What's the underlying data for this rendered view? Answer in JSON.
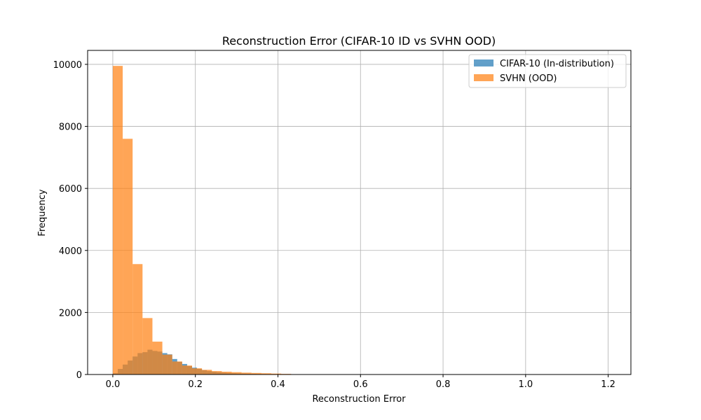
{
  "chart_data": {
    "type": "bar",
    "title": "Reconstruction Error (CIFAR-10 ID vs SVHN OOD)",
    "xlabel": "Reconstruction Error",
    "ylabel": "Frequency",
    "xlim": [
      -0.061,
      1.255
    ],
    "ylim": [
      0,
      10450
    ],
    "xticks": [
      0.0,
      0.2,
      0.4,
      0.6,
      0.8,
      1.0,
      1.2
    ],
    "xtick_labels": [
      "0.0",
      "0.2",
      "0.4",
      "0.6",
      "0.8",
      "1.0",
      "1.2"
    ],
    "yticks": [
      0,
      2000,
      4000,
      6000,
      8000,
      10000
    ],
    "ytick_labels": [
      "0",
      "2000",
      "4000",
      "6000",
      "8000",
      "10000"
    ],
    "grid": true,
    "legend_position": "top-right",
    "series": [
      {
        "name": "CIFAR-10 (In-distribution)",
        "color": "#1f77b4",
        "alpha": 0.7,
        "bin_edges": [
          0.0,
          0.012,
          0.024,
          0.036,
          0.048,
          0.06,
          0.072,
          0.084,
          0.096,
          0.108,
          0.12,
          0.132,
          0.144,
          0.156,
          0.168,
          0.18,
          0.192,
          0.204,
          0.216,
          0.228,
          0.24,
          0.252,
          0.264,
          0.276,
          0.288,
          0.3,
          0.312,
          0.324,
          0.336,
          0.348,
          0.36,
          0.372,
          0.384,
          0.396,
          0.408,
          0.42,
          0.432,
          0.444,
          0.456
        ],
        "counts": [
          40,
          180,
          320,
          450,
          580,
          690,
          720,
          800,
          760,
          740,
          690,
          650,
          500,
          410,
          340,
          270,
          220,
          180,
          140,
          110,
          90,
          75,
          60,
          50,
          42,
          36,
          30,
          26,
          22,
          18,
          15,
          12,
          10,
          8,
          6,
          5,
          4,
          3
        ]
      },
      {
        "name": "SVHN (OOD)",
        "color": "#ff7f0e",
        "alpha": 0.7,
        "bin_edges": [
          0.0,
          0.024,
          0.048,
          0.072,
          0.096,
          0.12,
          0.144,
          0.168,
          0.192,
          0.216,
          0.24,
          0.264,
          0.288,
          0.312,
          0.336,
          0.36,
          0.384,
          0.408,
          0.432,
          0.456
        ],
        "counts": [
          9950,
          7600,
          3560,
          1820,
          1060,
          640,
          420,
          290,
          200,
          150,
          110,
          90,
          75,
          60,
          50,
          40,
          30,
          20,
          10
        ]
      }
    ]
  }
}
